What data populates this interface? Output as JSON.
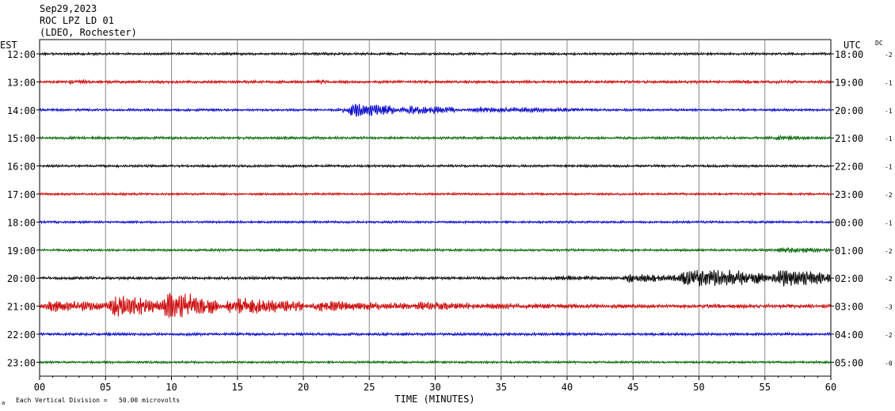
{
  "header": {
    "date": "Sep29,2023",
    "station": "ROC LPZ LD 01",
    "network": "(LDEO, Rochester)"
  },
  "left_tz": "EST",
  "right_tz": "UTC",
  "dc_label": "DC",
  "footer": {
    "mark": "a",
    "note": "Each Vertical Division =   50.00 microvolts"
  },
  "chart_data": {
    "type": "line",
    "title": "",
    "xlabel": "TIME (MINUTES)",
    "ylabel": "",
    "xlim": [
      0,
      60
    ],
    "x_ticks": [
      "00",
      "05",
      "10",
      "15",
      "20",
      "25",
      "30",
      "35",
      "40",
      "45",
      "50",
      "55",
      "60"
    ],
    "grid": "vertical lines every 5 minutes",
    "colors": [
      "#000000",
      "#cc0000",
      "#0000cc",
      "#006600"
    ],
    "rows": [
      {
        "est": "12:00",
        "utc": "18:00",
        "dc": "-2",
        "color": "#000000",
        "base_amp": 1.6,
        "events": []
      },
      {
        "est": "13:00",
        "utc": "19:00",
        "dc": "-1",
        "color": "#cc0000",
        "base_amp": 1.8,
        "events": [
          {
            "start": 2,
            "end": 4,
            "amp": 3
          },
          {
            "start": 21,
            "end": 22,
            "amp": 3
          }
        ]
      },
      {
        "est": "14:00",
        "utc": "20:00",
        "dc": "-1",
        "color": "#0000cc",
        "base_amp": 1.6,
        "events": [
          {
            "start": 23,
            "end": 27,
            "amp": 10
          },
          {
            "start": 27,
            "end": 31.5,
            "amp": 6
          },
          {
            "start": 31.5,
            "end": 42,
            "amp": 3.5
          }
        ]
      },
      {
        "est": "15:00",
        "utc": "21:00",
        "dc": "-1",
        "color": "#006600",
        "base_amp": 1.8,
        "events": [
          {
            "start": 55,
            "end": 60,
            "amp": 3
          }
        ]
      },
      {
        "est": "16:00",
        "utc": "22:00",
        "dc": "-1",
        "color": "#000000",
        "base_amp": 1.6,
        "events": []
      },
      {
        "est": "17:00",
        "utc": "23:00",
        "dc": "-2",
        "color": "#cc0000",
        "base_amp": 1.5,
        "events": []
      },
      {
        "est": "18:00",
        "utc": "00:00",
        "dc": "-1",
        "color": "#0000cc",
        "base_amp": 1.5,
        "events": []
      },
      {
        "est": "19:00",
        "utc": "01:00",
        "dc": "-2",
        "color": "#006600",
        "base_amp": 1.6,
        "events": [
          {
            "start": 55.5,
            "end": 60,
            "amp": 4
          }
        ]
      },
      {
        "est": "20:00",
        "utc": "02:00",
        "dc": "-2",
        "color": "#000000",
        "base_amp": 1.8,
        "events": [
          {
            "start": 38,
            "end": 44,
            "amp": 3
          },
          {
            "start": 44,
            "end": 48,
            "amp": 6
          },
          {
            "start": 48,
            "end": 55,
            "amp": 13
          },
          {
            "start": 55,
            "end": 60,
            "amp": 12
          }
        ]
      },
      {
        "est": "21:00",
        "utc": "03:00",
        "dc": "-3",
        "color": "#cc0000",
        "base_amp": 2.5,
        "events": [
          {
            "start": 0,
            "end": 5,
            "amp": 8
          },
          {
            "start": 5,
            "end": 9,
            "amp": 15
          },
          {
            "start": 9,
            "end": 13.5,
            "amp": 19
          },
          {
            "start": 13.5,
            "end": 20,
            "amp": 11
          },
          {
            "start": 20,
            "end": 28,
            "amp": 7
          },
          {
            "start": 28,
            "end": 33,
            "amp": 6
          },
          {
            "start": 33,
            "end": 40,
            "amp": 4
          }
        ]
      },
      {
        "est": "22:00",
        "utc": "04:00",
        "dc": "-2",
        "color": "#0000cc",
        "base_amp": 1.8,
        "events": []
      },
      {
        "est": "23:00",
        "utc": "05:00",
        "dc": "-0",
        "color": "#006600",
        "base_amp": 1.5,
        "events": []
      }
    ]
  }
}
